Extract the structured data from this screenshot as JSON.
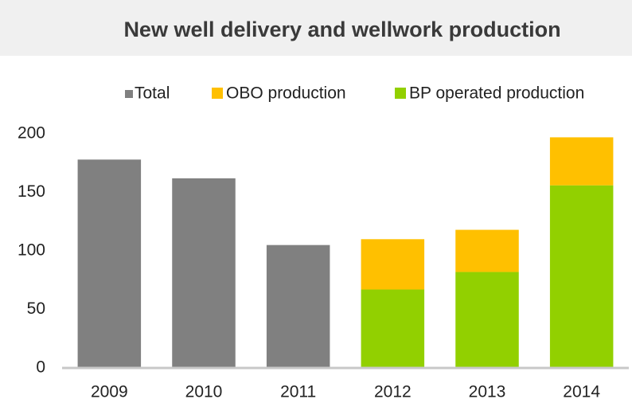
{
  "chart_data": {
    "type": "stacked_bar",
    "title": "New well delivery and wellwork production",
    "categories": [
      "2009",
      "2010",
      "2011",
      "2012",
      "2013",
      "2014"
    ],
    "series": [
      {
        "name": "Total",
        "color": "#808080",
        "values": [
          178,
          162,
          105,
          null,
          null,
          null
        ]
      },
      {
        "name": "OBO production",
        "color": "#ffc000",
        "values": [
          null,
          null,
          null,
          43,
          36,
          41
        ]
      },
      {
        "name": "BP operated production",
        "color": "#92d000",
        "values": [
          null,
          null,
          null,
          67,
          82,
          156
        ]
      }
    ],
    "ylim": [
      0,
      200
    ],
    "yticks": [
      0,
      50,
      100,
      150,
      200
    ],
    "grid": false,
    "legend": "top"
  }
}
